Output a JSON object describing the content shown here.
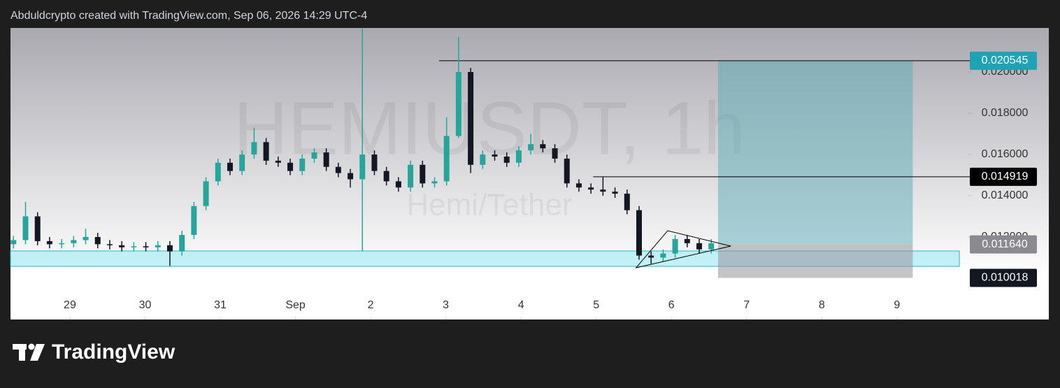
{
  "header": "Abduldcrypto created with TradingView.com, Sep 06, 2026 14:29 UTC-4",
  "logo": "TradingView",
  "chart_data": {
    "type": "candlestick",
    "title": "HEMIUSDT, 1h",
    "subtitle": "Hemi/Tether",
    "grid": false,
    "up_color": "#26a69a",
    "down_color": "#131722",
    "xlim": [
      28.21,
      40.95
    ],
    "xticks": [
      29,
      30,
      31,
      {
        "value": 32,
        "label": "Sep"
      },
      {
        "value": 33,
        "label": "2"
      },
      {
        "value": 34,
        "label": "3"
      },
      {
        "value": 35,
        "label": "4"
      },
      {
        "value": 36,
        "label": "5"
      },
      {
        "value": 37,
        "label": "6"
      },
      {
        "value": 38,
        "label": "7"
      },
      {
        "value": 39,
        "label": "8"
      },
      {
        "value": 40,
        "label": "9"
      }
    ],
    "ylim": [
      0.008,
      0.022136
    ],
    "yticks": [
      {
        "value": 0.01,
        "label": "0.010000"
      },
      {
        "value": 0.012,
        "label": "0.012000"
      },
      {
        "value": 0.014,
        "label": "0.014000"
      },
      {
        "value": 0.016,
        "label": "0.016000"
      },
      {
        "value": 0.018,
        "label": "0.018000"
      },
      {
        "value": 0.02,
        "label": "0.020000"
      }
    ],
    "candles": {
      "x": [
        28.25,
        28.41,
        28.57,
        28.73,
        28.89,
        29.05,
        29.21,
        29.37,
        29.53,
        29.69,
        29.85,
        30.01,
        30.17,
        30.33,
        30.49,
        30.65,
        30.81,
        30.97,
        31.13,
        31.29,
        31.45,
        31.61,
        31.77,
        31.93,
        32.09,
        32.25,
        32.41,
        32.57,
        32.73,
        32.89,
        33.05,
        33.21,
        33.37,
        33.53,
        33.69,
        33.85,
        34.01,
        34.17,
        34.33,
        34.49,
        34.65,
        34.81,
        34.97,
        35.13,
        35.29,
        35.45,
        35.61,
        35.77,
        35.93,
        36.09,
        36.25,
        36.41,
        36.57,
        36.73,
        36.89,
        37.05,
        37.21,
        37.37,
        37.53
      ],
      "open": [
        0.01165,
        0.01185,
        0.013,
        0.0118,
        0.01165,
        0.0117,
        0.01185,
        0.012,
        0.01165,
        0.0116,
        0.0115,
        0.01155,
        0.0115,
        0.0116,
        0.0113,
        0.0121,
        0.0135,
        0.0147,
        0.0156,
        0.0152,
        0.016,
        0.0166,
        0.0157,
        0.0156,
        0.0152,
        0.0158,
        0.0161,
        0.0154,
        0.0151,
        0.0148,
        0.016,
        0.0152,
        0.0147,
        0.0144,
        0.0155,
        0.0146,
        0.0147,
        0.0169,
        0.02,
        0.0155,
        0.016,
        0.0159,
        0.0156,
        0.0162,
        0.0165,
        0.0163,
        0.0158,
        0.0146,
        0.0144,
        0.0143,
        0.0142,
        0.0141,
        0.0133,
        0.0111,
        0.011,
        0.0112,
        0.0119,
        0.0117,
        0.0114
      ],
      "high": [
        0.01205,
        0.0137,
        0.0132,
        0.012,
        0.0119,
        0.01205,
        0.0124,
        0.0122,
        0.01185,
        0.0118,
        0.01175,
        0.01175,
        0.0118,
        0.0118,
        0.0123,
        0.0137,
        0.0149,
        0.0158,
        0.0158,
        0.0162,
        0.0173,
        0.0168,
        0.0159,
        0.0158,
        0.016,
        0.0163,
        0.0163,
        0.0156,
        0.0153,
        0.0221,
        0.0162,
        0.0154,
        0.0149,
        0.0157,
        0.0157,
        0.0149,
        0.0178,
        0.0217,
        0.0202,
        0.0162,
        0.0162,
        0.0161,
        0.0164,
        0.017,
        0.0167,
        0.0165,
        0.016,
        0.0148,
        0.0146,
        0.01492,
        0.0144,
        0.0143,
        0.0135,
        0.0113,
        0.0114,
        0.0121,
        0.0121,
        0.0119,
        0.0119
      ],
      "low": [
        0.01145,
        0.01165,
        0.0116,
        0.01145,
        0.01145,
        0.0115,
        0.01165,
        0.01145,
        0.0114,
        0.0113,
        0.0113,
        0.0113,
        0.0113,
        0.0106,
        0.0111,
        0.0119,
        0.0133,
        0.0145,
        0.015,
        0.015,
        0.0158,
        0.0155,
        0.0154,
        0.015,
        0.015,
        0.0156,
        0.0152,
        0.0149,
        0.0144,
        0.0113,
        0.015,
        0.0145,
        0.0142,
        0.0142,
        0.0144,
        0.0144,
        0.0145,
        0.0168,
        0.0151,
        0.0153,
        0.0157,
        0.0154,
        0.0154,
        0.016,
        0.0161,
        0.0156,
        0.0144,
        0.0142,
        0.0141,
        0.014,
        0.0139,
        0.0131,
        0.0109,
        0.0107,
        0.0108,
        0.011,
        0.0115,
        0.0112,
        0.0112
      ],
      "close": [
        0.01185,
        0.013,
        0.0118,
        0.01165,
        0.0117,
        0.01185,
        0.012,
        0.01165,
        0.0116,
        0.0115,
        0.01155,
        0.0115,
        0.0116,
        0.0113,
        0.0121,
        0.0135,
        0.0147,
        0.0156,
        0.0152,
        0.016,
        0.0166,
        0.0157,
        0.0156,
        0.0152,
        0.0158,
        0.0161,
        0.0154,
        0.0151,
        0.0148,
        0.016,
        0.0152,
        0.0147,
        0.0144,
        0.0155,
        0.0146,
        0.0147,
        0.0169,
        0.02,
        0.0155,
        0.016,
        0.0159,
        0.0156,
        0.0162,
        0.0165,
        0.0163,
        0.0158,
        0.0146,
        0.0144,
        0.0143,
        0.0142,
        0.0141,
        0.0133,
        0.0111,
        0.011,
        0.0112,
        0.0119,
        0.0117,
        0.0114,
        0.0117
      ]
    },
    "levels": [
      {
        "from": 33.91,
        "price": {
          "value": 0.020545,
          "label": "0.020545"
        },
        "tag_color": "#1fa2b3"
      },
      {
        "from": 35.96,
        "price": {
          "value": 0.014919,
          "label": "0.014919"
        },
        "tag_color": "#000000"
      }
    ],
    "position": {
      "from": 37.62,
      "to": 40.21,
      "target": 0.02054,
      "entry": {
        "value": 0.01164,
        "label": "0.011640"
      },
      "stop": {
        "value": 0.010018,
        "label": "0.010018"
      },
      "profit_color": "rgba(90,170,180,0.5)",
      "loss_color": "rgba(150,150,155,0.55)",
      "entry_tag_color": "#8a8a90",
      "stop_tag_color": "#131722"
    },
    "zone": {
      "to": 40.83,
      "top": 0.011322,
      "bottom": 0.010576,
      "fill": "rgba(170,235,245,0.7)",
      "stroke": "#2ab7c9"
    },
    "triangle": [
      [
        36.53,
        0.010508
      ],
      [
        36.95,
        0.012305
      ],
      [
        37.79,
        0.011559
      ]
    ]
  }
}
